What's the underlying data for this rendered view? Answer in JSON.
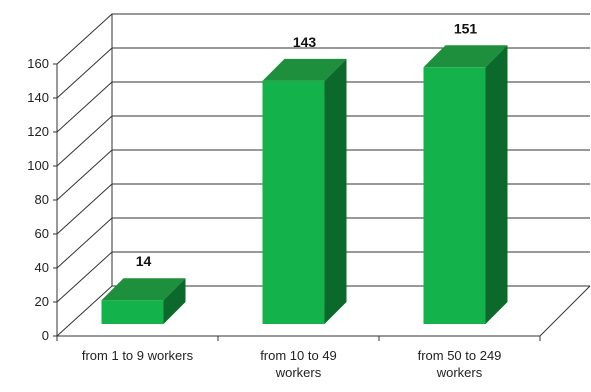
{
  "chart_data": {
    "type": "bar",
    "title": "",
    "xlabel": "",
    "ylabel": "",
    "categories": [
      "from 1 to 9 workers",
      "from 10 to 49 workers",
      "from 50 to 249 workers"
    ],
    "category_lines": [
      [
        "from 1 to 9 workers"
      ],
      [
        "from 10 to 49",
        "workers"
      ],
      [
        "from 50 to 249",
        "workers"
      ]
    ],
    "values": [
      14,
      143,
      151
    ],
    "data_labels": [
      "14",
      "143",
      "151"
    ],
    "ylim": [
      0,
      160
    ],
    "yticks": [
      0,
      20,
      40,
      60,
      80,
      100,
      120,
      140,
      160
    ],
    "ytick_labels": [
      "0",
      "20",
      "40",
      "60",
      "80",
      "100",
      "120",
      "140",
      "160"
    ],
    "grid": true,
    "legend": "none",
    "style": "3d",
    "colors": {
      "front": "#13b24a",
      "top": "#1e8f3c",
      "side": "#0b6a2b",
      "grid": "#333333"
    }
  }
}
